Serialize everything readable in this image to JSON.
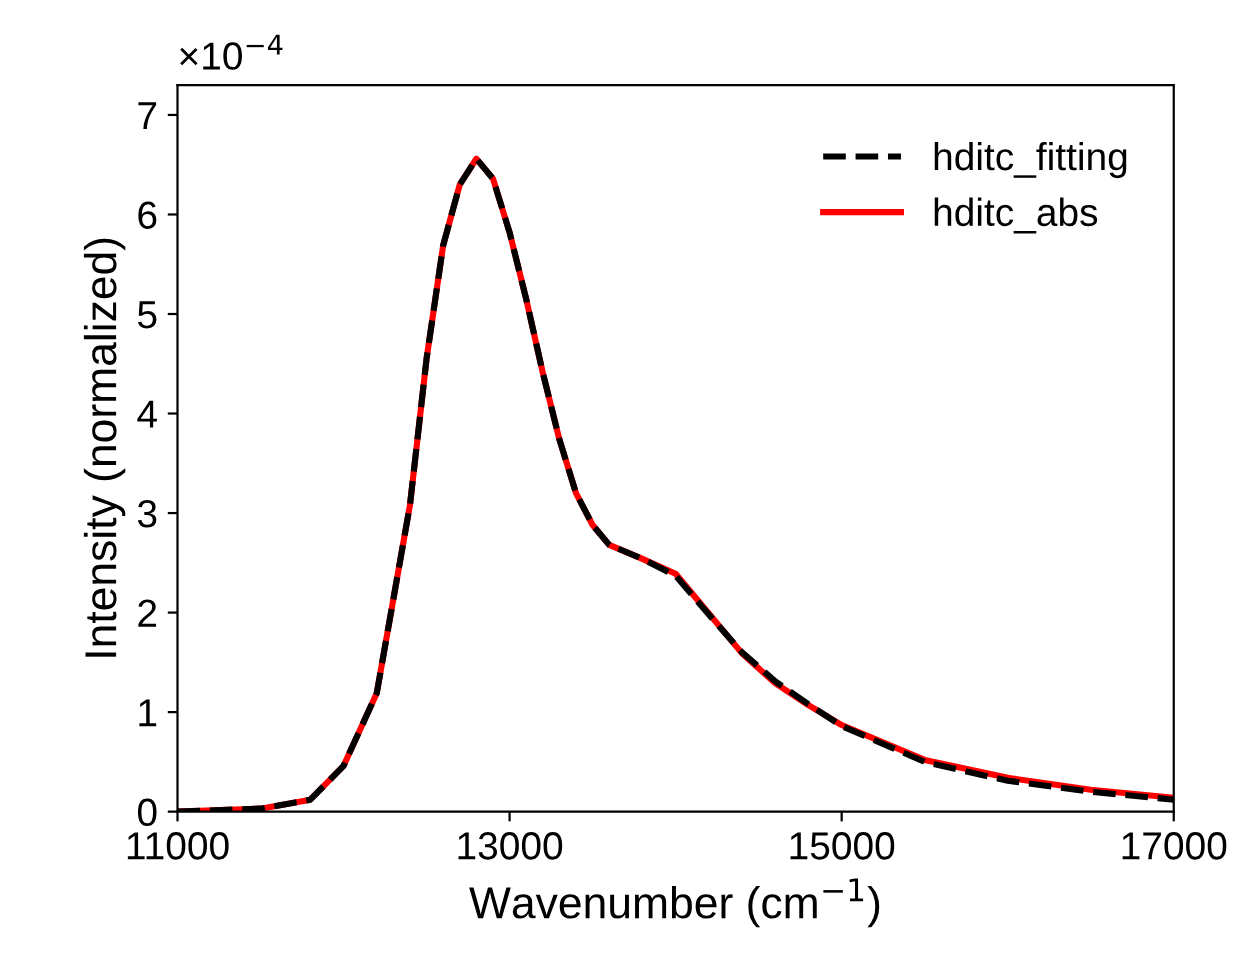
{
  "chart_data": {
    "type": "line",
    "xlabel": "Wavenumber (cm$^{−1}$)",
    "ylabel": "Intensity (normalized)",
    "annotations": [
      "×10$^{−4}$"
    ],
    "x": [
      11000,
      11500,
      11800,
      12000,
      12200,
      12400,
      12500,
      12600,
      12700,
      12800,
      12900,
      13000,
      13100,
      13200,
      13300,
      13400,
      13500,
      13600,
      13800,
      14000,
      14200,
      14400,
      14600,
      14800,
      15000,
      15500,
      16000,
      16500,
      17000
    ],
    "series": [
      {
        "name": "hditc_fitting",
        "color": "#000000",
        "line_style": "dashed",
        "values": [
          0,
          0.03,
          0.12,
          0.46,
          1.19,
          3.08,
          4.55,
          5.69,
          6.3,
          6.56,
          6.36,
          5.82,
          5.15,
          4.41,
          3.74,
          3.2,
          2.88,
          2.68,
          2.54,
          2.37,
          1.98,
          1.6,
          1.31,
          1.08,
          0.86,
          0.5,
          0.31,
          0.2,
          0.12
        ]
      },
      {
        "name": "hditc_abs",
        "color": "#ff0000",
        "line_style": "solid",
        "values": [
          0,
          0.03,
          0.12,
          0.46,
          1.19,
          3.08,
          4.55,
          5.69,
          6.3,
          6.56,
          6.36,
          5.82,
          5.15,
          4.41,
          3.74,
          3.2,
          2.88,
          2.68,
          2.54,
          2.39,
          1.99,
          1.59,
          1.29,
          1.07,
          0.87,
          0.52,
          0.34,
          0.22,
          0.14
        ]
      }
    ],
    "xlim": [
      11000,
      17000
    ],
    "xticks": [
      11000,
      13000,
      15000,
      17000
    ],
    "ylim": [
      0,
      7.3
    ],
    "yticks": [
      0,
      1,
      2,
      3,
      4,
      5,
      6,
      7
    ],
    "grid": false,
    "legend": "top right"
  }
}
